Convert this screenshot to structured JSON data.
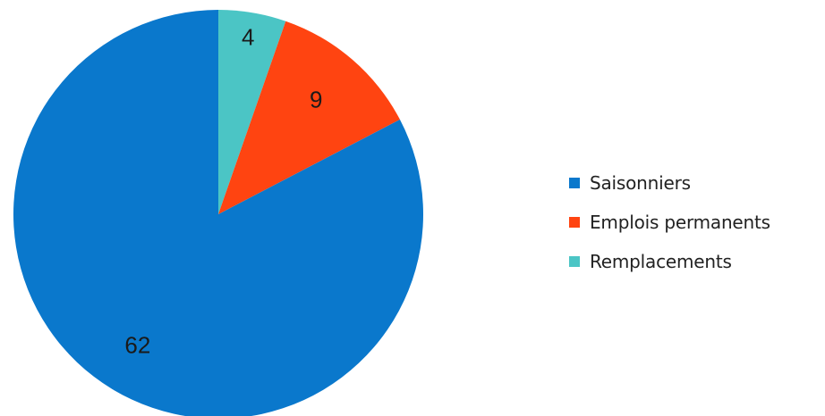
{
  "chart_data": {
    "type": "pie",
    "start_angle_deg": 0,
    "direction": "clockwise",
    "slices": [
      {
        "label": "Remplacements",
        "value": 4,
        "color": "#4bc5c5"
      },
      {
        "label": "Emplois permanents",
        "value": 9,
        "color": "#ff4411"
      },
      {
        "label": "Saisonniers",
        "value": 62,
        "color": "#0a78cc"
      }
    ],
    "legend": {
      "placement": "right",
      "items": [
        {
          "label": "Saisonniers",
          "color": "#0a78cc"
        },
        {
          "label": "Emplois permanents",
          "color": "#ff4411"
        },
        {
          "label": "Remplacements",
          "color": "#4bc5c5"
        }
      ]
    },
    "data_labels": [
      "4",
      "9",
      "62"
    ]
  }
}
